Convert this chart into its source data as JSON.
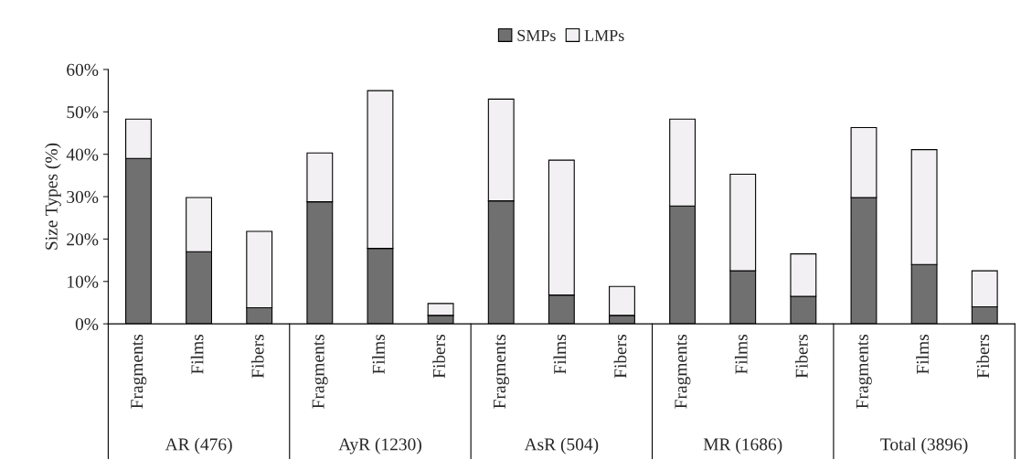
{
  "chart_data": {
    "type": "bar",
    "stacked": true,
    "ylabel": "Size Types (%)",
    "categories": [
      "Fragments",
      "Films",
      "Fibers",
      "Fragments",
      "Films",
      "Fibers",
      "Fragments",
      "Films",
      "Fibers",
      "Fragments",
      "Films",
      "Fibers",
      "Fragments",
      "Films",
      "Fibers"
    ],
    "series": [
      {
        "name": "SMPs",
        "color": "#707070",
        "values": [
          39,
          17,
          3.8,
          28.8,
          17.8,
          2,
          29,
          6.8,
          2,
          27.8,
          12.5,
          6.5,
          29.8,
          14,
          4
        ]
      },
      {
        "name": "LMPs",
        "color": "#f2f0f2",
        "values": [
          9.3,
          12.8,
          18,
          11.5,
          37.2,
          2.8,
          24,
          31.8,
          6.8,
          20.5,
          22.8,
          10,
          16.5,
          27.1,
          8.5
        ]
      }
    ],
    "annotations": [
      "AR (476)",
      "AyR (1230)",
      "AsR (504)",
      "MR (1686)",
      "Total (3896)"
    ],
    "ylim": [
      0,
      60
    ],
    "yticks": [
      {
        "value": 0,
        "label": "0%"
      },
      {
        "value": 10,
        "label": "10%"
      },
      {
        "value": 20,
        "label": "20%"
      },
      {
        "value": 30,
        "label": "30%"
      },
      {
        "value": 40,
        "label": "40%"
      },
      {
        "value": 50,
        "label": "50%"
      },
      {
        "value": 60,
        "label": "60%"
      }
    ],
    "legend": "top",
    "grid": false
  }
}
